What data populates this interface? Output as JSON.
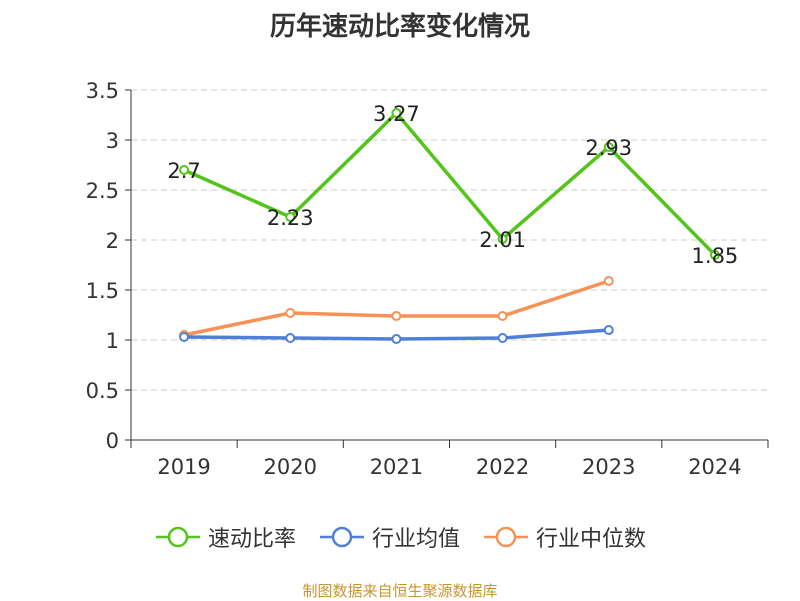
{
  "chart_data": {
    "type": "line",
    "title": "历年速动比率变化情况",
    "categories": [
      "2019",
      "2020",
      "2021",
      "2022",
      "2023",
      "2024"
    ],
    "ylim": [
      0,
      3.5
    ],
    "yticks": [
      "0",
      "0.5",
      "1",
      "1.5",
      "2",
      "2.5",
      "3",
      "3.5"
    ],
    "grid": true,
    "legend_position": "bottom",
    "series": [
      {
        "name": "速动比率",
        "color": "#52c41a",
        "values": [
          2.7,
          2.23,
          3.27,
          2.01,
          2.93,
          1.85
        ],
        "labels": [
          "2.7",
          "2.23",
          "3.27",
          "2.01",
          "2.93",
          "1.85"
        ]
      },
      {
        "name": "行业均值",
        "color": "#4e7fd9",
        "values": [
          1.03,
          1.02,
          1.01,
          1.02,
          1.1,
          null
        ]
      },
      {
        "name": "行业中位数",
        "color": "#f79256",
        "values": [
          1.05,
          1.27,
          1.24,
          1.24,
          1.59,
          null
        ]
      }
    ]
  },
  "footer": {
    "source": "制图数据来自恒生聚源数据库"
  }
}
